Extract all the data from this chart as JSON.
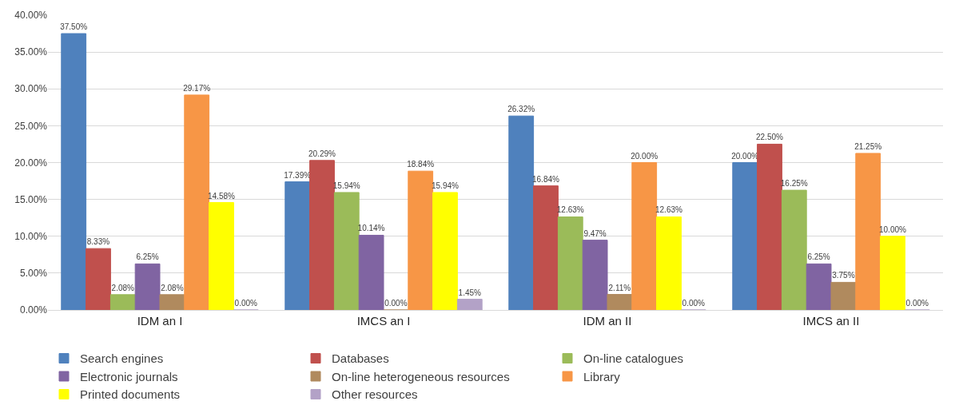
{
  "chart_data": {
    "type": "bar",
    "categories": [
      "IDM an I",
      "IMCS an I",
      "IDM an II",
      "IMCS an II"
    ],
    "series": [
      {
        "name": "Search engines",
        "color": "#4f81bd",
        "values": [
          37.5,
          17.39,
          26.32,
          20.0
        ],
        "value_labels": [
          "37.50%",
          "17.39%",
          "26.32%",
          "20.00%"
        ]
      },
      {
        "name": "Databases",
        "color": "#c0504d",
        "values": [
          8.33,
          20.29,
          16.84,
          22.5
        ],
        "value_labels": [
          "8.33%",
          "20.29%",
          "16.84%",
          "22.50%"
        ]
      },
      {
        "name": "On-line catalogues",
        "color": "#9bbb59",
        "values": [
          2.08,
          15.94,
          12.63,
          16.25
        ],
        "value_labels": [
          "2.08%",
          "15.94%",
          "12.63%",
          "16.25%"
        ]
      },
      {
        "name": "Electronic journals",
        "color": "#8064a2",
        "values": [
          6.25,
          10.14,
          9.47,
          6.25
        ],
        "value_labels": [
          "6.25%",
          "10.14%",
          "9.47%",
          "6.25%"
        ]
      },
      {
        "name": "On-line heterogeneous resources",
        "color": "#b08a5e",
        "values": [
          2.08,
          0.0,
          2.11,
          3.75
        ],
        "value_labels": [
          "2.08%",
          "0.00%",
          "2.11%",
          "3.75%"
        ]
      },
      {
        "name": "Library",
        "color": "#f79646",
        "values": [
          29.17,
          18.84,
          20.0,
          21.25
        ],
        "value_labels": [
          "29.17%",
          "18.84%",
          "20.00%",
          "21.25%"
        ]
      },
      {
        "name": "Printed documents",
        "color": "#ffff00",
        "values": [
          14.58,
          15.94,
          12.63,
          10.0
        ],
        "value_labels": [
          "14.58%",
          "15.94%",
          "12.63%",
          "10.00%"
        ]
      },
      {
        "name": "Other resources",
        "color": "#b3a2c7",
        "values": [
          0.0,
          1.45,
          0.0,
          0.0
        ],
        "value_labels": [
          "0.00%",
          "1.45%",
          "0.00%",
          "0.00%"
        ]
      }
    ],
    "ylim": [
      0,
      40
    ],
    "yticks": [
      {
        "value": 0,
        "label": "0.00%"
      },
      {
        "value": 5,
        "label": "5.00%"
      },
      {
        "value": 10,
        "label": "10.00%"
      },
      {
        "value": 15,
        "label": "15.00%"
      },
      {
        "value": 20,
        "label": "20.00%"
      },
      {
        "value": 25,
        "label": "25.00%"
      },
      {
        "value": 30,
        "label": "30.00%"
      },
      {
        "value": 35,
        "label": "35.00%"
      },
      {
        "value": 40,
        "label": "40.00%"
      }
    ],
    "grid": "y",
    "legend": "bottom"
  }
}
